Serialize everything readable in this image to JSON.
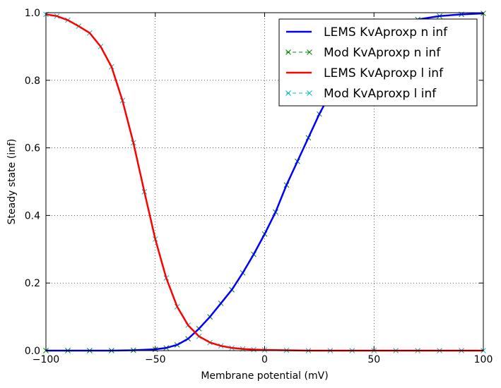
{
  "chart_data": {
    "type": "line",
    "title": "",
    "xlabel": "Membrane potential (mV)",
    "ylabel": "Steady state (inf)",
    "xlim": [
      -100,
      100
    ],
    "ylim": [
      0.0,
      1.0
    ],
    "grid": true,
    "legend_position": "top-right",
    "xticks": [
      -100,
      -50,
      0,
      50,
      100
    ],
    "xtick_labels": [
      "−100",
      "−50",
      "0",
      "50",
      "100"
    ],
    "yticks": [
      0.0,
      0.2,
      0.4,
      0.6,
      0.8,
      1.0
    ],
    "ytick_labels": [
      "0.0",
      "0.2",
      "0.4",
      "0.6",
      "0.8",
      "1.0"
    ],
    "series": [
      {
        "name": "LEMS KvAproxp n inf",
        "style": "line",
        "color": "#0000ff",
        "x": [
          -100,
          -90,
          -80,
          -70,
          -60,
          -50,
          -45,
          -40,
          -35,
          -30,
          -25,
          -20,
          -15,
          -10,
          -5,
          0,
          5,
          10,
          15,
          20,
          25,
          30,
          35,
          40,
          45,
          50,
          60,
          70,
          80,
          90,
          100
        ],
        "y": [
          0.0,
          0.0,
          0.0,
          0.0,
          0.001,
          0.004,
          0.008,
          0.017,
          0.035,
          0.065,
          0.1,
          0.14,
          0.18,
          0.23,
          0.285,
          0.345,
          0.41,
          0.49,
          0.56,
          0.63,
          0.7,
          0.76,
          0.815,
          0.86,
          0.895,
          0.925,
          0.96,
          0.98,
          0.99,
          0.995,
          0.998
        ]
      },
      {
        "name": "Mod KvAproxp n inf",
        "style": "markers-dashed",
        "color": "#008000",
        "x": [
          -100,
          -90,
          -80,
          -70,
          -60,
          -50,
          -45,
          -40,
          -35,
          -30,
          -25,
          -20,
          -15,
          -10,
          -5,
          0,
          5,
          10,
          15,
          20,
          25,
          30,
          35,
          40,
          45,
          50,
          60,
          70,
          80,
          90,
          100
        ],
        "y": [
          0.0,
          0.0,
          0.0,
          0.0,
          0.001,
          0.004,
          0.008,
          0.017,
          0.035,
          0.065,
          0.1,
          0.14,
          0.18,
          0.23,
          0.285,
          0.345,
          0.41,
          0.49,
          0.56,
          0.63,
          0.7,
          0.76,
          0.815,
          0.86,
          0.895,
          0.925,
          0.96,
          0.98,
          0.99,
          0.995,
          0.998
        ]
      },
      {
        "name": "LEMS KvAproxp l inf",
        "style": "line",
        "color": "#ff0000",
        "x": [
          -100,
          -95,
          -90,
          -85,
          -80,
          -75,
          -70,
          -65,
          -60,
          -55,
          -50,
          -45,
          -40,
          -35,
          -30,
          -25,
          -20,
          -15,
          -10,
          -5,
          0,
          10,
          20,
          30,
          40,
          50,
          60,
          70,
          80,
          90,
          100
        ],
        "y": [
          0.995,
          0.99,
          0.978,
          0.96,
          0.94,
          0.9,
          0.84,
          0.74,
          0.615,
          0.47,
          0.33,
          0.215,
          0.13,
          0.075,
          0.042,
          0.024,
          0.014,
          0.008,
          0.005,
          0.003,
          0.002,
          0.001,
          0.0,
          0.0,
          0.0,
          0.0,
          0.0,
          0.0,
          0.0,
          0.0,
          0.0
        ]
      },
      {
        "name": "Mod KvAproxp l inf",
        "style": "markers-dashed",
        "color": "#00bfbf",
        "x": [
          -100,
          -95,
          -90,
          -85,
          -80,
          -75,
          -70,
          -65,
          -60,
          -55,
          -50,
          -45,
          -40,
          -35,
          -30,
          -25,
          -20,
          -15,
          -10,
          -5,
          0,
          10,
          20,
          30,
          40,
          50,
          60,
          70,
          80,
          90,
          100
        ],
        "y": [
          0.995,
          0.99,
          0.978,
          0.96,
          0.94,
          0.9,
          0.84,
          0.74,
          0.615,
          0.47,
          0.33,
          0.215,
          0.13,
          0.075,
          0.042,
          0.024,
          0.014,
          0.008,
          0.005,
          0.003,
          0.002,
          0.001,
          0.0,
          0.0,
          0.0,
          0.0,
          0.0,
          0.0,
          0.0,
          0.0,
          0.0
        ]
      }
    ]
  }
}
